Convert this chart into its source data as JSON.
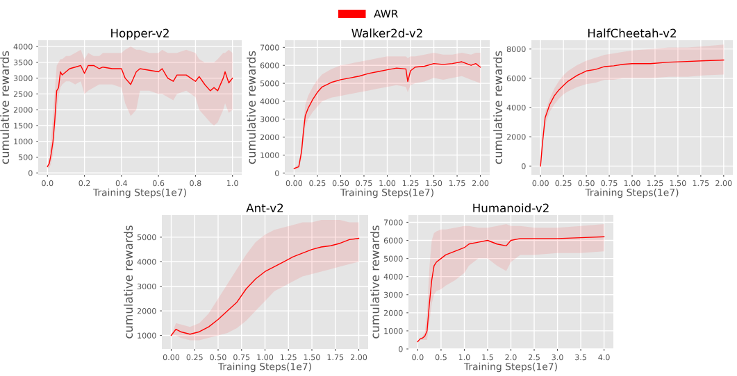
{
  "chart_data": [
    {
      "type": "line",
      "title": "Hopper-v2",
      "xlabel": "Training Steps(1e7)",
      "ylabel": "cumulative rewards",
      "legend": "top",
      "grid": true,
      "xlim": [
        -0.05,
        1.05
      ],
      "ylim": [
        -60,
        4200
      ],
      "xticks": [
        {
          "value": 0,
          "label": "0.0"
        },
        {
          "value": 0.2,
          "label": "0.2"
        },
        {
          "value": 0.4,
          "label": "0.4"
        },
        {
          "value": 0.6,
          "label": "0.6"
        },
        {
          "value": 0.8,
          "label": "0.8"
        },
        {
          "value": 1,
          "label": "1.0"
        }
      ],
      "yticks": [
        0,
        500,
        1000,
        1500,
        2000,
        2500,
        3000,
        3500,
        4000
      ],
      "series": [
        {
          "name": "AWR",
          "color": "#ff0000",
          "x": [
            0,
            0.01,
            0.02,
            0.03,
            0.04,
            0.05,
            0.06,
            0.07,
            0.08,
            0.1,
            0.12,
            0.15,
            0.18,
            0.2,
            0.22,
            0.25,
            0.28,
            0.3,
            0.35,
            0.4,
            0.42,
            0.45,
            0.48,
            0.5,
            0.55,
            0.6,
            0.62,
            0.65,
            0.68,
            0.7,
            0.75,
            0.8,
            0.82,
            0.85,
            0.88,
            0.9,
            0.92,
            0.95,
            0.96,
            0.98,
            1.0
          ],
          "values": [
            200,
            300,
            600,
            1000,
            1700,
            2600,
            2700,
            3200,
            3100,
            3200,
            3300,
            3350,
            3400,
            3150,
            3400,
            3400,
            3300,
            3350,
            3300,
            3300,
            3000,
            2800,
            3200,
            3300,
            3250,
            3200,
            3300,
            3000,
            2900,
            3100,
            3100,
            2900,
            3050,
            2800,
            2600,
            2700,
            2600,
            3000,
            3200,
            2850,
            3000
          ],
          "lower": [
            150,
            150,
            300,
            600,
            1200,
            2000,
            2400,
            2700,
            2800,
            2900,
            2900,
            2800,
            2900,
            2500,
            2600,
            2700,
            2800,
            2800,
            2800,
            2700,
            2200,
            1800,
            2000,
            2600,
            2600,
            2500,
            2500,
            2400,
            2300,
            2500,
            2600,
            2400,
            2000,
            1800,
            1600,
            1500,
            1600,
            2000,
            2200,
            1900,
            2000
          ],
          "upper": [
            250,
            500,
            1100,
            1800,
            2600,
            3400,
            3500,
            3600,
            3600,
            3700,
            3700,
            3800,
            3900,
            3600,
            3800,
            3700,
            3700,
            3800,
            3800,
            3800,
            3900,
            4000,
            3900,
            3900,
            3800,
            3800,
            3900,
            3800,
            3800,
            3800,
            3900,
            3800,
            3600,
            3500,
            3500,
            3500,
            3600,
            3800,
            3800,
            3900,
            3800
          ]
        }
      ]
    },
    {
      "type": "line",
      "title": "Walker2d-v2",
      "xlabel": "Training Steps(1e7)",
      "ylabel": "cumulative rewards",
      "grid": true,
      "xlim": [
        -0.1,
        2.1
      ],
      "ylim": [
        -100,
        7400
      ],
      "xticks": [
        {
          "value": 0,
          "label": "0.00"
        },
        {
          "value": 0.25,
          "label": "0.25"
        },
        {
          "value": 0.5,
          "label": "0.50"
        },
        {
          "value": 0.75,
          "label": "0.75"
        },
        {
          "value": 1,
          "label": "1.00"
        },
        {
          "value": 1.25,
          "label": "1.25"
        },
        {
          "value": 1.5,
          "label": "1.50"
        },
        {
          "value": 1.75,
          "label": "1.75"
        },
        {
          "value": 2,
          "label": "2.00"
        }
      ],
      "yticks": [
        0,
        1000,
        2000,
        3000,
        4000,
        5000,
        6000,
        7000
      ],
      "series": [
        {
          "color": "#ff0000",
          "x": [
            0,
            0.05,
            0.08,
            0.1,
            0.12,
            0.15,
            0.2,
            0.25,
            0.3,
            0.4,
            0.5,
            0.6,
            0.7,
            0.8,
            0.9,
            1.0,
            1.1,
            1.2,
            1.22,
            1.25,
            1.3,
            1.4,
            1.5,
            1.6,
            1.7,
            1.8,
            1.9,
            1.95,
            2.0
          ],
          "values": [
            250,
            350,
            1200,
            2300,
            3200,
            3600,
            4100,
            4500,
            4800,
            5050,
            5200,
            5300,
            5400,
            5550,
            5650,
            5750,
            5850,
            5800,
            5100,
            5700,
            5900,
            5950,
            6100,
            6050,
            6100,
            6200,
            6000,
            6100,
            5900
          ],
          "lower": [
            200,
            250,
            800,
            1800,
            2600,
            3000,
            3400,
            3700,
            4000,
            4200,
            4300,
            4400,
            4500,
            4600,
            4700,
            4800,
            4900,
            4800,
            4500,
            4900,
            5000,
            5100,
            5300,
            5200,
            5300,
            5400,
            5200,
            5100,
            5000
          ],
          "upper": [
            300,
            500,
            1600,
            2800,
            3800,
            4300,
            4800,
            5200,
            5500,
            5800,
            6000,
            6100,
            6200,
            6300,
            6400,
            6500,
            6500,
            6500,
            6400,
            6500,
            6500,
            6600,
            6700,
            6600,
            6600,
            6700,
            6600,
            6700,
            6700
          ]
        }
      ]
    },
    {
      "type": "line",
      "title": "HalfCheetah-v2",
      "xlabel": "Training Steps(1e7)",
      "ylabel": "cumulative rewards",
      "grid": true,
      "xlim": [
        -0.1,
        2.1
      ],
      "ylim": [
        -600,
        8600
      ],
      "xticks": [
        {
          "value": 0,
          "label": "0.00"
        },
        {
          "value": 0.25,
          "label": "0.25"
        },
        {
          "value": 0.5,
          "label": "0.50"
        },
        {
          "value": 0.75,
          "label": "0.75"
        },
        {
          "value": 1,
          "label": "1.00"
        },
        {
          "value": 1.25,
          "label": "1.25"
        },
        {
          "value": 1.5,
          "label": "1.50"
        },
        {
          "value": 1.75,
          "label": "1.75"
        },
        {
          "value": 2,
          "label": "2.00"
        }
      ],
      "yticks": [
        0,
        2000,
        4000,
        6000,
        8000
      ],
      "series": [
        {
          "color": "#ff0000",
          "x": [
            0,
            0.02,
            0.05,
            0.1,
            0.15,
            0.2,
            0.25,
            0.3,
            0.4,
            0.5,
            0.6,
            0.7,
            0.8,
            0.9,
            1.0,
            1.2,
            1.4,
            1.6,
            1.8,
            2.0
          ],
          "values": [
            0,
            1500,
            3300,
            4200,
            4800,
            5200,
            5500,
            5800,
            6200,
            6500,
            6600,
            6800,
            6850,
            6950,
            7000,
            7000,
            7100,
            7150,
            7200,
            7250
          ],
          "lower": [
            -200,
            1000,
            2800,
            3700,
            4200,
            4600,
            4900,
            5100,
            5400,
            5600,
            5700,
            5900,
            5900,
            6000,
            6000,
            6000,
            6100,
            6100,
            6200,
            6250
          ],
          "upper": [
            100,
            1900,
            3700,
            4600,
            5300,
            5800,
            6200,
            6500,
            6900,
            7200,
            7400,
            7600,
            7700,
            7800,
            7900,
            8000,
            8100,
            8100,
            8200,
            8300
          ]
        }
      ]
    },
    {
      "type": "line",
      "title": "Ant-v2",
      "xlabel": "Training Steps(1e7)",
      "ylabel": "cumulative rewards",
      "grid": true,
      "xlim": [
        -0.1,
        2.1
      ],
      "ylim": [
        450,
        5900
      ],
      "xticks": [
        {
          "value": 0,
          "label": "0.00"
        },
        {
          "value": 0.25,
          "label": "0.25"
        },
        {
          "value": 0.5,
          "label": "0.50"
        },
        {
          "value": 0.75,
          "label": "0.75"
        },
        {
          "value": 1,
          "label": "1.00"
        },
        {
          "value": 1.25,
          "label": "1.25"
        },
        {
          "value": 1.5,
          "label": "1.50"
        },
        {
          "value": 1.75,
          "label": "1.75"
        },
        {
          "value": 2,
          "label": "2.00"
        }
      ],
      "yticks": [
        1000,
        2000,
        3000,
        4000,
        5000
      ],
      "series": [
        {
          "color": "#ff0000",
          "x": [
            0,
            0.05,
            0.1,
            0.2,
            0.3,
            0.4,
            0.5,
            0.6,
            0.7,
            0.8,
            0.9,
            1.0,
            1.1,
            1.2,
            1.3,
            1.4,
            1.5,
            1.6,
            1.7,
            1.8,
            1.9,
            2.0
          ],
          "values": [
            1000,
            1250,
            1150,
            1050,
            1150,
            1350,
            1650,
            2000,
            2350,
            2900,
            3300,
            3600,
            3800,
            4000,
            4200,
            4350,
            4500,
            4600,
            4650,
            4750,
            4900,
            4950
          ],
          "lower": [
            1000,
            1000,
            900,
            800,
            800,
            900,
            1000,
            1100,
            1300,
            1600,
            2000,
            2400,
            2800,
            3000,
            3200,
            3400,
            3500,
            3600,
            3700,
            3800,
            3900,
            4000
          ],
          "upper": [
            1000,
            1500,
            1450,
            1350,
            1500,
            1900,
            2500,
            3100,
            3700,
            4300,
            4800,
            5100,
            5300,
            5400,
            5500,
            5600,
            5600,
            5700,
            5700,
            5700,
            5600,
            5600
          ]
        }
      ]
    },
    {
      "type": "line",
      "title": "Humanoid-v2",
      "xlabel": "Training Steps(1e7)",
      "ylabel": "cumulative rewards",
      "grid": true,
      "xlim": [
        -0.2,
        4.2
      ],
      "ylim": [
        0,
        7400
      ],
      "xticks": [
        {
          "value": 0,
          "label": "0.0"
        },
        {
          "value": 0.5,
          "label": "0.5"
        },
        {
          "value": 1,
          "label": "1.0"
        },
        {
          "value": 1.5,
          "label": "1.5"
        },
        {
          "value": 2,
          "label": "2.0"
        },
        {
          "value": 2.5,
          "label": "2.5"
        },
        {
          "value": 3,
          "label": "3.0"
        },
        {
          "value": 3.5,
          "label": "3.5"
        },
        {
          "value": 4,
          "label": "4.0"
        }
      ],
      "yticks": [
        0,
        1000,
        2000,
        3000,
        4000,
        5000,
        6000,
        7000
      ],
      "series": [
        {
          "color": "#ff0000",
          "x": [
            0,
            0.05,
            0.1,
            0.15,
            0.2,
            0.25,
            0.3,
            0.35,
            0.4,
            0.5,
            0.6,
            0.8,
            1.0,
            1.1,
            1.3,
            1.5,
            1.7,
            1.9,
            2.0,
            2.2,
            2.5,
            3.0,
            3.5,
            4.0
          ],
          "values": [
            400,
            550,
            600,
            700,
            1000,
            2500,
            3800,
            4600,
            4800,
            5000,
            5200,
            5400,
            5600,
            5800,
            5900,
            6000,
            5800,
            5700,
            6000,
            6100,
            6100,
            6100,
            6150,
            6200
          ],
          "lower": [
            400,
            500,
            500,
            500,
            500,
            1500,
            2500,
            3000,
            3200,
            3300,
            3500,
            3800,
            4200,
            4600,
            5000,
            5000,
            4600,
            4300,
            4800,
            5200,
            5200,
            5300,
            5300,
            5400
          ],
          "upper": [
            400,
            600,
            700,
            900,
            2000,
            4500,
            6000,
            6400,
            6500,
            6600,
            6600,
            6700,
            6800,
            6800,
            6700,
            6700,
            6800,
            6900,
            6800,
            6800,
            6700,
            6700,
            6800,
            6900
          ]
        }
      ]
    }
  ]
}
